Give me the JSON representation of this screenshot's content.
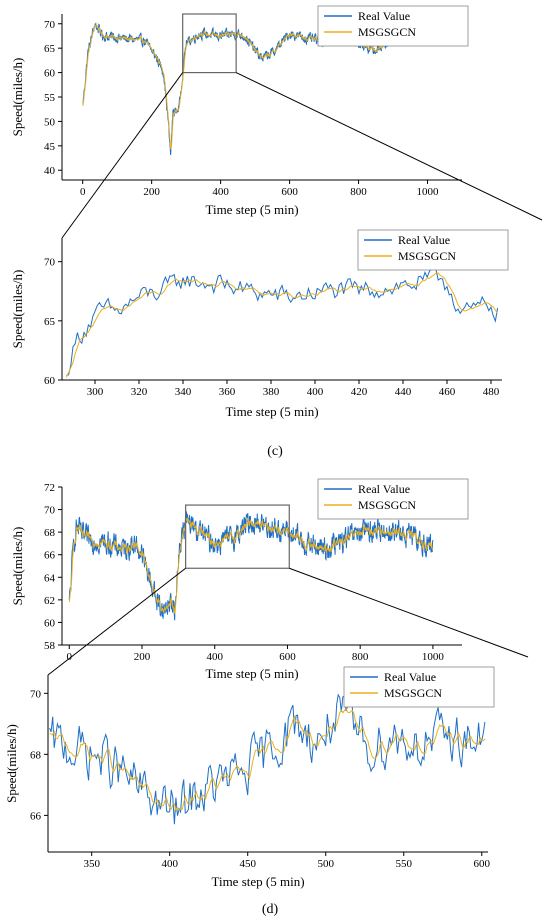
{
  "colors": {
    "real": "#1f6fc6",
    "pred": "#e8b020",
    "axis": "#000000",
    "zoom_box": "#666666"
  },
  "labels": {
    "panel_c": "(c)",
    "panel_d": "(d)"
  },
  "chart_data": [
    {
      "type": "line",
      "xlabel": "Time step (5 min)",
      "ylabel": "Speed(miles/h)",
      "xlim": [
        -60,
        1100
      ],
      "ylim": [
        38,
        72
      ],
      "xticks": [
        0,
        200,
        400,
        600,
        800,
        1000
      ],
      "yticks": [
        40,
        45,
        50,
        55,
        60,
        65,
        70
      ],
      "legend": "top-right",
      "series": [
        {
          "name": "Real Value",
          "color_key": "real",
          "x_start": 0,
          "x_end": 1000
        },
        {
          "name": "MSGSGCN",
          "color_key": "pred",
          "x_start": 0,
          "x_end": 1000
        }
      ],
      "profile_x": [
        0,
        15,
        35,
        60,
        120,
        180,
        215,
        235,
        248,
        255,
        262,
        270,
        280,
        290,
        300,
        340,
        400,
        440,
        470,
        500,
        520,
        550,
        600,
        650,
        700,
        740,
        800,
        850,
        900,
        950,
        1000
      ],
      "profile_y": [
        53,
        64,
        70,
        67.5,
        67,
        66.5,
        63,
        60,
        50,
        43,
        52,
        52,
        53,
        60,
        66,
        68,
        67.5,
        68,
        67.5,
        64.5,
        63,
        64,
        68,
        67,
        66.5,
        68,
        66,
        64.5,
        67,
        67.5,
        67
      ],
      "zoom_box": {
        "x": [
          290,
          445
        ],
        "y": [
          60,
          72
        ]
      }
    },
    {
      "type": "line",
      "xlabel": "Time step (5 min)",
      "ylabel": "Speed(miles/h)",
      "xlim": [
        285,
        485
      ],
      "ylim": [
        60,
        72
      ],
      "xticks": [
        300,
        320,
        340,
        360,
        380,
        400,
        420,
        440,
        460,
        480
      ],
      "yticks": [
        60,
        65,
        70
      ],
      "legend": "top-right",
      "series": [
        {
          "name": "Real Value",
          "color_key": "real",
          "x_start": 287,
          "x_end": 483
        },
        {
          "name": "MSGSGCN",
          "color_key": "pred",
          "x_start": 287,
          "x_end": 483
        }
      ],
      "profile_x": [
        287,
        289,
        292,
        296,
        300,
        305,
        310,
        320,
        330,
        340,
        350,
        360,
        370,
        380,
        390,
        400,
        410,
        420,
        430,
        440,
        450,
        458,
        462,
        466,
        470,
        475,
        480,
        483
      ],
      "profile_y": [
        60,
        62,
        63.5,
        64.5,
        65.3,
        66,
        65.7,
        67,
        67.5,
        68.5,
        68.2,
        68,
        67.5,
        67.2,
        67,
        67.4,
        67.6,
        67.5,
        67.8,
        68,
        68.3,
        68.7,
        67.5,
        65.8,
        65.6,
        66.2,
        66.4,
        65.8
      ],
      "noise": 0.75
    },
    {
      "type": "line",
      "xlabel": "Time step (5 min)",
      "ylabel": "Speed(miles/h)",
      "xlim": [
        -20,
        1080
      ],
      "ylim": [
        58,
        72
      ],
      "xticks": [
        0,
        200,
        400,
        600,
        800,
        1000
      ],
      "yticks": [
        58,
        60,
        62,
        64,
        66,
        68,
        70,
        72
      ],
      "legend": "top-right",
      "series": [
        {
          "name": "Real Value",
          "color_key": "real",
          "x_start": 0,
          "x_end": 1000
        },
        {
          "name": "MSGSGCN",
          "color_key": "pred",
          "x_start": 0,
          "x_end": 1000
        }
      ],
      "profile_x": [
        0,
        12,
        20,
        40,
        100,
        150,
        180,
        200,
        220,
        240,
        260,
        280,
        290,
        300,
        320,
        360,
        400,
        450,
        500,
        550,
        600,
        650,
        700,
        740,
        800,
        850,
        900,
        950,
        1000
      ],
      "profile_y": [
        61.5,
        67,
        68.5,
        67.5,
        67,
        66.5,
        67,
        66,
        64,
        62,
        61,
        62,
        60.5,
        66,
        69,
        68,
        67,
        67.5,
        69,
        68.5,
        68,
        67,
        66.5,
        67,
        68,
        68.2,
        68,
        67.5,
        66.5
      ],
      "zoom_box": {
        "x": [
          320,
          605
        ],
        "y": [
          64.8,
          70.4
        ]
      }
    },
    {
      "type": "line",
      "xlabel": "Time step (5 min)",
      "ylabel": "Speed(miles/h)",
      "xlim": [
        322,
        604
      ],
      "ylim": [
        64.8,
        70.6
      ],
      "xticks": [
        350,
        400,
        450,
        500,
        550,
        600
      ],
      "yticks": [
        66,
        68,
        70
      ],
      "legend": "top-right",
      "series": [
        {
          "name": "Real Value",
          "color_key": "real",
          "x_start": 323,
          "x_end": 602
        },
        {
          "name": "MSGSGCN",
          "color_key": "pred",
          "x_start": 323,
          "x_end": 602
        }
      ],
      "profile_x": [
        323,
        340,
        360,
        380,
        395,
        405,
        415,
        430,
        450,
        465,
        480,
        495,
        505,
        515,
        530,
        545,
        560,
        580,
        602
      ],
      "profile_y": [
        68.4,
        68.2,
        67.8,
        66.9,
        66.3,
        66.1,
        66.6,
        67.0,
        67.5,
        68.2,
        69.0,
        68.4,
        69.2,
        69.0,
        68.2,
        68.6,
        68.3,
        68.6,
        68.4
      ],
      "noise": 0.7
    }
  ]
}
